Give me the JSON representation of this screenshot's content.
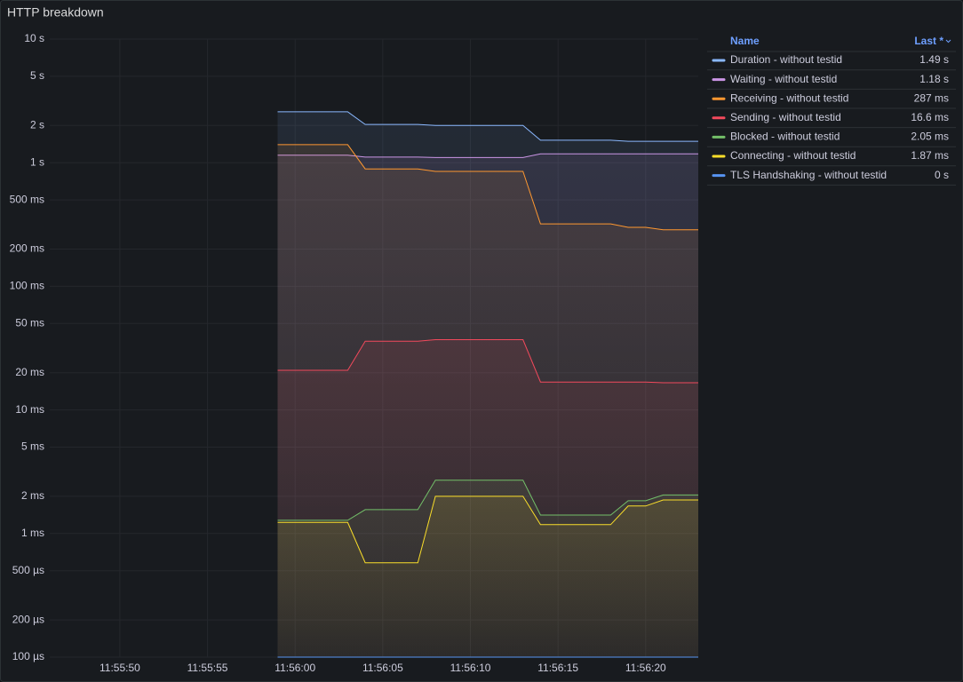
{
  "chart_data": {
    "type": "line",
    "title": "HTTP breakdown",
    "log_scale": true,
    "grid": true,
    "legend_position": "right",
    "legend_columns": [
      "Name",
      "Last *"
    ],
    "x": [
      "11:55:59",
      "11:56:03",
      "11:56:04",
      "11:56:07",
      "11:56:08",
      "11:56:13",
      "11:56:14",
      "11:56:18",
      "11:56:19",
      "11:56:20",
      "11:56:21",
      "11:56:23"
    ],
    "xlim": [
      "11:55:46",
      "11:56:23"
    ],
    "xticks": [
      "11:55:50",
      "11:55:55",
      "11:56:00",
      "11:56:05",
      "11:56:10",
      "11:56:15",
      "11:56:20"
    ],
    "ylim": [
      0.0001,
      10
    ],
    "yticks": [
      {
        "value": 10,
        "label": "10 s"
      },
      {
        "value": 5,
        "label": "5 s"
      },
      {
        "value": 2,
        "label": "2 s"
      },
      {
        "value": 1,
        "label": "1 s"
      },
      {
        "value": 0.5,
        "label": "500 ms"
      },
      {
        "value": 0.2,
        "label": "200 ms"
      },
      {
        "value": 0.1,
        "label": "100 ms"
      },
      {
        "value": 0.05,
        "label": "50 ms"
      },
      {
        "value": 0.02,
        "label": "20 ms"
      },
      {
        "value": 0.01,
        "label": "10 ms"
      },
      {
        "value": 0.005,
        "label": "5 ms"
      },
      {
        "value": 0.002,
        "label": "2 ms"
      },
      {
        "value": 0.001,
        "label": "1 ms"
      },
      {
        "value": 0.0005,
        "label": "500 µs"
      },
      {
        "value": 0.0002,
        "label": "200 µs"
      },
      {
        "value": 0.0001,
        "label": "100 µs"
      }
    ],
    "series": [
      {
        "name": "Duration - without testid",
        "color": "#8ab8ff",
        "last_label": "1.49 s",
        "values": [
          2.58,
          2.58,
          2.04,
          2.04,
          2.0,
          2.0,
          1.52,
          1.52,
          1.49,
          1.49,
          1.49,
          1.49
        ]
      },
      {
        "name": "Waiting - without testid",
        "color": "#ca95e5",
        "last_label": "1.18 s",
        "values": [
          1.15,
          1.15,
          1.11,
          1.11,
          1.1,
          1.1,
          1.18,
          1.18,
          1.18,
          1.18,
          1.18,
          1.18
        ]
      },
      {
        "name": "Receiving - without testid",
        "color": "#ff9830",
        "last_label": "287 ms",
        "values": [
          1.4,
          1.4,
          0.89,
          0.89,
          0.85,
          0.85,
          0.32,
          0.32,
          0.3,
          0.3,
          0.287,
          0.287
        ]
      },
      {
        "name": "Sending - without testid",
        "color": "#f2495c",
        "last_label": "16.6 ms",
        "values": [
          0.0209,
          0.0209,
          0.036,
          0.036,
          0.037,
          0.037,
          0.0168,
          0.0168,
          0.0168,
          0.0168,
          0.0166,
          0.0166
        ]
      },
      {
        "name": "Blocked - without testid",
        "color": "#73bf69",
        "last_label": "2.05 ms",
        "values": [
          0.00128,
          0.00128,
          0.00156,
          0.00156,
          0.0027,
          0.0027,
          0.00141,
          0.00141,
          0.00184,
          0.00184,
          0.00205,
          0.00205
        ]
      },
      {
        "name": "Connecting - without testid",
        "color": "#fade2a",
        "last_label": "1.87 ms",
        "values": [
          0.00123,
          0.00123,
          0.00058,
          0.00058,
          0.002,
          0.002,
          0.00118,
          0.00118,
          0.00167,
          0.00167,
          0.00187,
          0.00187
        ]
      },
      {
        "name": "TLS Handshaking - without testid",
        "color": "#5794f2",
        "last_label": "0 s",
        "values": [
          0,
          0,
          0,
          0,
          0,
          0,
          0,
          0,
          0,
          0,
          0,
          0
        ]
      }
    ]
  }
}
